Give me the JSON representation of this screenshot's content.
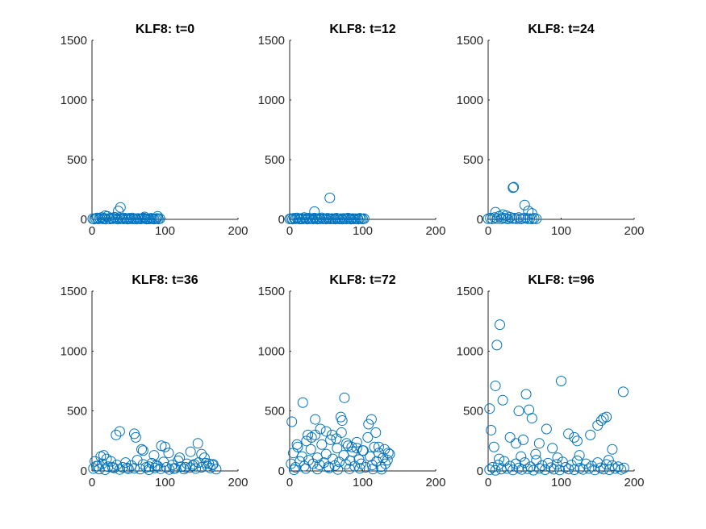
{
  "figure": {
    "background": "#ffffff",
    "marker_color": "#0072BD"
  },
  "chart_data": [
    {
      "type": "scatter",
      "title": "KLF8: t=0",
      "xlim": [
        0,
        200
      ],
      "ylim": [
        0,
        1500
      ],
      "xticks": [
        0,
        100,
        200
      ],
      "yticks": [
        0,
        500,
        1000,
        1500
      ],
      "x": [
        1,
        3,
        5,
        7,
        9,
        11,
        13,
        15,
        17,
        19,
        21,
        23,
        25,
        27,
        29,
        31,
        33,
        35,
        37,
        39,
        41,
        43,
        45,
        47,
        49,
        51,
        53,
        55,
        57,
        59,
        61,
        63,
        65,
        67,
        69,
        71,
        73,
        75,
        77,
        79,
        81,
        83,
        85,
        87,
        89,
        91,
        93,
        18,
        36,
        39,
        72,
        90
      ],
      "y": [
        5,
        2,
        8,
        12,
        3,
        6,
        15,
        4,
        9,
        2,
        25,
        7,
        3,
        11,
        5,
        18,
        6,
        2,
        14,
        4,
        8,
        3,
        10,
        5,
        2,
        9,
        4,
        12,
        3,
        6,
        2,
        8,
        5,
        3,
        7,
        11,
        4,
        2,
        6,
        3,
        9,
        5,
        2,
        4,
        8,
        3,
        6,
        30,
        70,
        100,
        20,
        25
      ]
    },
    {
      "type": "scatter",
      "title": "KLF8: t=12",
      "xlim": [
        0,
        200
      ],
      "ylim": [
        0,
        1500
      ],
      "xticks": [
        0,
        100,
        200
      ],
      "yticks": [
        0,
        500,
        1000,
        1500
      ],
      "x": [
        0,
        2,
        4,
        6,
        8,
        10,
        12,
        14,
        16,
        18,
        20,
        22,
        24,
        26,
        28,
        30,
        32,
        34,
        36,
        38,
        40,
        42,
        44,
        46,
        48,
        50,
        52,
        54,
        56,
        58,
        60,
        62,
        64,
        66,
        68,
        70,
        72,
        74,
        76,
        78,
        80,
        82,
        84,
        86,
        88,
        90,
        92,
        94,
        96,
        98,
        100,
        102,
        34,
        55
      ],
      "y": [
        3,
        6,
        2,
        9,
        4,
        12,
        5,
        2,
        8,
        3,
        15,
        6,
        2,
        10,
        4,
        7,
        3,
        11,
        5,
        2,
        8,
        4,
        13,
        3,
        6,
        2,
        9,
        5,
        3,
        7,
        4,
        2,
        10,
        5,
        3,
        6,
        2,
        8,
        4,
        3,
        11,
        5,
        2,
        7,
        3,
        6,
        4,
        2,
        9,
        5,
        3,
        6,
        65,
        180
      ]
    },
    {
      "type": "scatter",
      "title": "KLF8: t=24",
      "xlim": [
        0,
        200
      ],
      "ylim": [
        0,
        1500
      ],
      "xticks": [
        0,
        100,
        200
      ],
      "yticks": [
        0,
        500,
        1000,
        1500
      ],
      "x": [
        0,
        3,
        6,
        9,
        12,
        15,
        18,
        21,
        24,
        27,
        30,
        33,
        36,
        39,
        42,
        45,
        48,
        51,
        54,
        57,
        60,
        63,
        66,
        10,
        20,
        25,
        34,
        35,
        50,
        55,
        60
      ],
      "y": [
        5,
        10,
        3,
        15,
        6,
        25,
        4,
        12,
        8,
        3,
        18,
        6,
        10,
        4,
        15,
        3,
        8,
        12,
        5,
        6,
        3,
        9,
        4,
        60,
        40,
        30,
        265,
        270,
        120,
        70,
        50
      ]
    },
    {
      "type": "scatter",
      "title": "KLF8: t=36",
      "xlim": [
        0,
        200
      ],
      "ylim": [
        0,
        1500
      ],
      "xticks": [
        0,
        100,
        200
      ],
      "yticks": [
        0,
        500,
        1000,
        1500
      ],
      "x": [
        2,
        6,
        10,
        14,
        18,
        22,
        26,
        30,
        34,
        38,
        42,
        46,
        50,
        54,
        58,
        62,
        66,
        70,
        74,
        78,
        82,
        86,
        90,
        94,
        98,
        102,
        106,
        110,
        114,
        118,
        122,
        126,
        130,
        134,
        138,
        142,
        146,
        150,
        154,
        158,
        162,
        166,
        170,
        4,
        12,
        16,
        20,
        33,
        38,
        58,
        60,
        68,
        70,
        85,
        95,
        100,
        105,
        120,
        135,
        145,
        150,
        160,
        165,
        8,
        28,
        48,
        78,
        88,
        112,
        128,
        140,
        156
      ],
      "y": [
        20,
        40,
        15,
        60,
        10,
        35,
        80,
        25,
        50,
        12,
        30,
        70,
        18,
        45,
        22,
        90,
        15,
        55,
        30,
        10,
        65,
        25,
        40,
        18,
        75,
        30,
        12,
        50,
        22,
        85,
        35,
        15,
        60,
        28,
        45,
        20,
        70,
        30,
        110,
        40,
        25,
        55,
        15,
        80,
        120,
        130,
        100,
        300,
        330,
        310,
        280,
        180,
        170,
        130,
        210,
        200,
        150,
        110,
        160,
        230,
        140,
        60,
        50,
        40,
        30,
        25,
        35,
        45,
        20,
        30,
        55,
        65
      ]
    },
    {
      "type": "scatter",
      "title": "KLF8: t=72",
      "xlim": [
        0,
        200
      ],
      "ylim": [
        0,
        1500
      ],
      "xticks": [
        0,
        100,
        200
      ],
      "yticks": [
        0,
        500,
        1000,
        1500
      ],
      "x": [
        2,
        5,
        8,
        11,
        14,
        17,
        20,
        23,
        26,
        29,
        32,
        35,
        38,
        41,
        44,
        47,
        50,
        53,
        56,
        59,
        62,
        65,
        68,
        71,
        74,
        77,
        80,
        83,
        86,
        89,
        92,
        95,
        98,
        101,
        104,
        107,
        110,
        113,
        116,
        119,
        122,
        125,
        128,
        131,
        134,
        137,
        3,
        10,
        18,
        25,
        30,
        35,
        42,
        50,
        58,
        64,
        70,
        72,
        75,
        78,
        85,
        92,
        100,
        108,
        112,
        118,
        122,
        130,
        135,
        6,
        22,
        38,
        54,
        66,
        82,
        96,
        114,
        126
      ],
      "y": [
        60,
        150,
        30,
        200,
        80,
        120,
        40,
        250,
        90,
        180,
        60,
        300,
        110,
        50,
        220,
        70,
        140,
        35,
        260,
        100,
        45,
        190,
        75,
        320,
        130,
        55,
        210,
        85,
        160,
        40,
        240,
        95,
        60,
        170,
        30,
        280,
        120,
        50,
        200,
        80,
        150,
        35,
        110,
        60,
        90,
        140,
        410,
        220,
        570,
        300,
        280,
        430,
        350,
        330,
        300,
        270,
        450,
        420,
        610,
        230,
        200,
        190,
        170,
        390,
        430,
        320,
        200,
        180,
        150,
        10,
        20,
        15,
        25,
        12,
        18,
        22,
        16,
        14
      ]
    },
    {
      "type": "scatter",
      "title": "KLF8: t=96",
      "xlim": [
        0,
        200
      ],
      "ylim": [
        0,
        1500
      ],
      "xticks": [
        0,
        100,
        200
      ],
      "yticks": [
        0,
        500,
        1000,
        1500
      ],
      "x": [
        2,
        6,
        10,
        14,
        18,
        22,
        26,
        30,
        34,
        38,
        42,
        46,
        50,
        54,
        58,
        62,
        66,
        70,
        74,
        78,
        82,
        86,
        90,
        94,
        98,
        102,
        106,
        110,
        114,
        118,
        122,
        126,
        130,
        134,
        138,
        142,
        146,
        150,
        154,
        158,
        162,
        166,
        170,
        174,
        178,
        182,
        186,
        2,
        4,
        8,
        10,
        12,
        16,
        20,
        30,
        38,
        42,
        48,
        52,
        56,
        60,
        70,
        80,
        88,
        100,
        110,
        118,
        122,
        140,
        150,
        155,
        158,
        162,
        170,
        185,
        15,
        45,
        65,
        95,
        125,
        165
      ],
      "y": [
        10,
        30,
        5,
        50,
        15,
        80,
        20,
        40,
        8,
        60,
        25,
        12,
        70,
        18,
        35,
        6,
        90,
        22,
        45,
        10,
        65,
        28,
        14,
        55,
        8,
        75,
        30,
        16,
        50,
        10,
        85,
        24,
        12,
        60,
        20,
        40,
        8,
        70,
        26,
        15,
        55,
        10,
        45,
        20,
        35,
        12,
        25,
        520,
        340,
        200,
        710,
        1050,
        1220,
        590,
        280,
        230,
        500,
        260,
        640,
        510,
        440,
        230,
        350,
        190,
        750,
        310,
        280,
        250,
        300,
        380,
        420,
        440,
        450,
        180,
        660,
        100,
        120,
        140,
        110,
        130,
        90
      ]
    }
  ]
}
